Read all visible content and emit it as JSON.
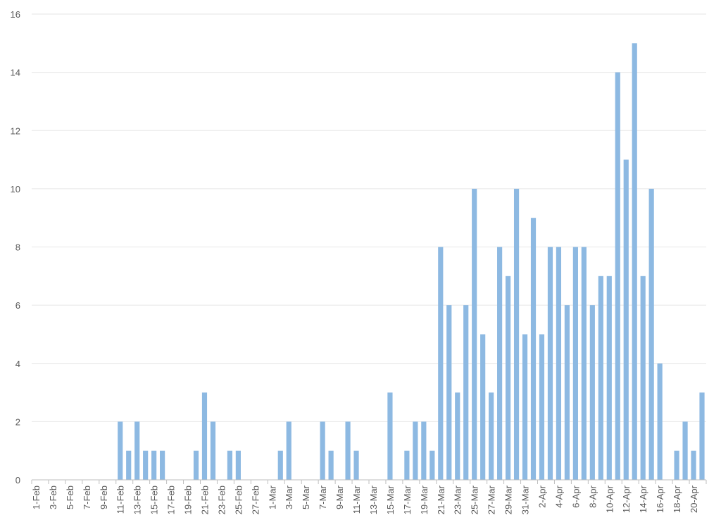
{
  "chart_data": {
    "type": "bar",
    "categories": [
      "1-Feb",
      null,
      "3-Feb",
      null,
      "5-Feb",
      null,
      "7-Feb",
      null,
      "9-Feb",
      null,
      "11-Feb",
      null,
      "13-Feb",
      null,
      "15-Feb",
      null,
      "17-Feb",
      null,
      "19-Feb",
      null,
      "21-Feb",
      null,
      "23-Feb",
      null,
      "25-Feb",
      null,
      "27-Feb",
      null,
      "1-Mar",
      null,
      "3-Mar",
      null,
      "5-Mar",
      null,
      "7-Mar",
      null,
      "9-Mar",
      null,
      "11-Mar",
      null,
      "13-Mar",
      null,
      "15-Mar",
      null,
      "17-Mar",
      null,
      "19-Mar",
      null,
      "21-Mar",
      null,
      "23-Mar",
      null,
      "25-Mar",
      null,
      "27-Mar",
      null,
      "29-Mar",
      null,
      "31-Mar",
      null,
      "2-Apr",
      null,
      "4-Apr",
      null,
      "6-Apr",
      null,
      "8-Apr",
      null,
      "10-Apr",
      null,
      "12-Apr",
      null,
      "14-Apr",
      null,
      "16-Apr",
      null,
      "18-Apr",
      null,
      "20-Apr",
      null
    ],
    "values": [
      0,
      0,
      0,
      0,
      0,
      0,
      0,
      0,
      0,
      0,
      2,
      1,
      2,
      1,
      1,
      1,
      0,
      0,
      0,
      1,
      3,
      2,
      0,
      1,
      1,
      0,
      0,
      0,
      0,
      1,
      2,
      0,
      0,
      0,
      2,
      1,
      0,
      2,
      1,
      0,
      0,
      0,
      3,
      0,
      1,
      2,
      2,
      1,
      8,
      6,
      3,
      6,
      10,
      5,
      3,
      8,
      7,
      10,
      5,
      9,
      5,
      8,
      8,
      6,
      8,
      8,
      6,
      7,
      7,
      14,
      11,
      15,
      7,
      10,
      4,
      0,
      1,
      2,
      1,
      3
    ],
    "color": "#8db9e2",
    "ylim": [
      0,
      16
    ],
    "yticks": [
      0,
      2,
      4,
      6,
      8,
      10,
      12,
      14,
      16
    ],
    "grid": true
  }
}
